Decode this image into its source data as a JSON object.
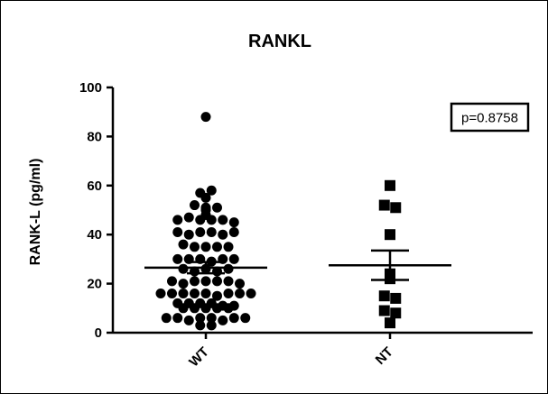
{
  "chart_data": {
    "type": "scatter",
    "title": "RANKL",
    "ylabel": "RANK-L (pg/ml)",
    "xlabel": "",
    "ylim": [
      0,
      100
    ],
    "yticks": [
      "0",
      "20",
      "40",
      "60",
      "80",
      "100"
    ],
    "categories": [
      "WT",
      "NT"
    ],
    "grid": false,
    "annotation": "p=0.8758",
    "series": [
      {
        "category": "WT",
        "marker": "circle",
        "mean": 26.5,
        "sem_upper": 28.8,
        "sem_lower": 24.2,
        "values": [
          88,
          52,
          51,
          57,
          55,
          58,
          51,
          50,
          46,
          47,
          46,
          46,
          46,
          45,
          48,
          41,
          40,
          41,
          41,
          40,
          41,
          36,
          35,
          35,
          35,
          35,
          30,
          30,
          30,
          29,
          30,
          30,
          26,
          25,
          26,
          25,
          26,
          21,
          20,
          21,
          21,
          21,
          21,
          20,
          16,
          16,
          16,
          16,
          16,
          15,
          16,
          16,
          16,
          12,
          12,
          12,
          12,
          11,
          11,
          10,
          10,
          10,
          10,
          10,
          6,
          6,
          5,
          6,
          6,
          5,
          6,
          6,
          3,
          3
        ]
      },
      {
        "category": "NT",
        "marker": "square",
        "mean": 27.5,
        "sem_upper": 33.5,
        "sem_lower": 21.5,
        "values": [
          60,
          52,
          51,
          40,
          24,
          22,
          15,
          14,
          9,
          8,
          4
        ]
      }
    ]
  }
}
